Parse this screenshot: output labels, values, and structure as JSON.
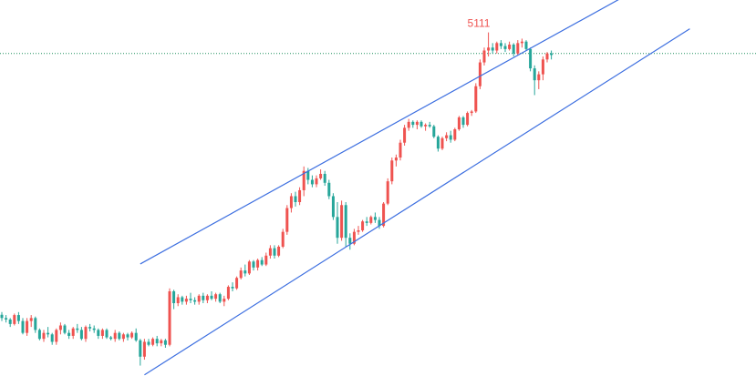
{
  "chart_data": {
    "type": "candlestick",
    "price_min": 3955,
    "price_max": 5220,
    "x": [
      0,
      133
    ],
    "colors": {
      "up": "#ef5350",
      "down": "#26a69a",
      "channel": "#3d6fe0",
      "price_line": "#1f8f5f",
      "high_label": "#ef5350",
      "background": "#ffffff"
    },
    "high_label": {
      "text": "5111",
      "value": 5111,
      "index": 115
    },
    "price_line": {
      "value": 5040,
      "style": "dotted"
    },
    "channel_lines": [
      {
        "name": "upper",
        "from": {
          "index": 33,
          "price": 4332
        },
        "to": {
          "index": 148,
          "price": 5229
        }
      },
      {
        "name": "lower",
        "from": {
          "index": 34,
          "price": 3959
        },
        "to": {
          "index": 164,
          "price": 5123
        }
      }
    ],
    "candles": [
      [
        4161,
        4170,
        4140,
        4150
      ],
      [
        4150,
        4160,
        4135,
        4145
      ],
      [
        4145,
        4150,
        4120,
        4130
      ],
      [
        4130,
        4165,
        4125,
        4160
      ],
      [
        4160,
        4170,
        4130,
        4140
      ],
      [
        4140,
        4150,
        4095,
        4100
      ],
      [
        4100,
        4150,
        4090,
        4140
      ],
      [
        4140,
        4160,
        4120,
        4150
      ],
      [
        4150,
        4155,
        4100,
        4110
      ],
      [
        4110,
        4115,
        4075,
        4080
      ],
      [
        4080,
        4110,
        4070,
        4100
      ],
      [
        4100,
        4120,
        4085,
        4095
      ],
      [
        4095,
        4100,
        4060,
        4070
      ],
      [
        4070,
        4115,
        4060,
        4110
      ],
      [
        4110,
        4135,
        4095,
        4125
      ],
      [
        4125,
        4130,
        4095,
        4100
      ],
      [
        4100,
        4110,
        4080,
        4090
      ],
      [
        4090,
        4120,
        4080,
        4115
      ],
      [
        4115,
        4130,
        4100,
        4110
      ],
      [
        4110,
        4120,
        4075,
        4080
      ],
      [
        4080,
        4125,
        4070,
        4120
      ],
      [
        4120,
        4130,
        4105,
        4115
      ],
      [
        4115,
        4125,
        4100,
        4110
      ],
      [
        4110,
        4115,
        4080,
        4090
      ],
      [
        4090,
        4115,
        4080,
        4110
      ],
      [
        4110,
        4115,
        4080,
        4085
      ],
      [
        4085,
        4090,
        4075,
        4080
      ],
      [
        4080,
        4110,
        4070,
        4100
      ],
      [
        4100,
        4105,
        4075,
        4080
      ],
      [
        4080,
        4100,
        4070,
        4095
      ],
      [
        4095,
        4100,
        4075,
        4085
      ],
      [
        4085,
        4105,
        4080,
        4100
      ],
      [
        4100,
        4115,
        4070,
        4075
      ],
      [
        4075,
        4080,
        3990,
        4020
      ],
      [
        4020,
        4080,
        4010,
        4070
      ],
      [
        4070,
        4080,
        4055,
        4060
      ],
      [
        4060,
        4085,
        4055,
        4080
      ],
      [
        4080,
        4090,
        4055,
        4065
      ],
      [
        4065,
        4080,
        4055,
        4075
      ],
      [
        4075,
        4080,
        4050,
        4060
      ],
      [
        4060,
        4250,
        4055,
        4240
      ],
      [
        4240,
        4245,
        4180,
        4200
      ],
      [
        4200,
        4230,
        4190,
        4220
      ],
      [
        4220,
        4225,
        4195,
        4205
      ],
      [
        4205,
        4225,
        4195,
        4215
      ],
      [
        4215,
        4235,
        4200,
        4210
      ],
      [
        4210,
        4220,
        4195,
        4205
      ],
      [
        4205,
        4230,
        4195,
        4225
      ],
      [
        4225,
        4235,
        4200,
        4210
      ],
      [
        4210,
        4230,
        4200,
        4225
      ],
      [
        4225,
        4240,
        4210,
        4215
      ],
      [
        4215,
        4235,
        4205,
        4230
      ],
      [
        4230,
        4235,
        4200,
        4205
      ],
      [
        4205,
        4225,
        4190,
        4215
      ],
      [
        4215,
        4260,
        4210,
        4255
      ],
      [
        4255,
        4270,
        4240,
        4250
      ],
      [
        4250,
        4290,
        4245,
        4285
      ],
      [
        4285,
        4320,
        4280,
        4310
      ],
      [
        4310,
        4330,
        4290,
        4300
      ],
      [
        4300,
        4345,
        4295,
        4340
      ],
      [
        4340,
        4345,
        4310,
        4320
      ],
      [
        4320,
        4350,
        4310,
        4345
      ],
      [
        4345,
        4355,
        4325,
        4330
      ],
      [
        4330,
        4370,
        4325,
        4360
      ],
      [
        4360,
        4395,
        4350,
        4385
      ],
      [
        4385,
        4395,
        4350,
        4360
      ],
      [
        4360,
        4395,
        4355,
        4390
      ],
      [
        4390,
        4450,
        4385,
        4440
      ],
      [
        4440,
        4530,
        4430,
        4520
      ],
      [
        4520,
        4570,
        4505,
        4560
      ],
      [
        4560,
        4575,
        4525,
        4540
      ],
      [
        4540,
        4590,
        4530,
        4580
      ],
      [
        4580,
        4660,
        4560,
        4645
      ],
      [
        4645,
        4655,
        4600,
        4615
      ],
      [
        4615,
        4630,
        4590,
        4600
      ],
      [
        4600,
        4630,
        4590,
        4620
      ],
      [
        4620,
        4650,
        4615,
        4635
      ],
      [
        4635,
        4645,
        4595,
        4605
      ],
      [
        4605,
        4615,
        4550,
        4560
      ],
      [
        4560,
        4570,
        4480,
        4490
      ],
      [
        4490,
        4540,
        4400,
        4420
      ],
      [
        4420,
        4545,
        4410,
        4530
      ],
      [
        4530,
        4540,
        4390,
        4420
      ],
      [
        4420,
        4435,
        4380,
        4400
      ],
      [
        4400,
        4450,
        4395,
        4440
      ],
      [
        4440,
        4460,
        4430,
        4445
      ],
      [
        4445,
        4480,
        4440,
        4475
      ],
      [
        4475,
        4490,
        4460,
        4470
      ],
      [
        4470,
        4495,
        4465,
        4490
      ],
      [
        4490,
        4505,
        4470,
        4480
      ],
      [
        4480,
        4490,
        4450,
        4460
      ],
      [
        4460,
        4540,
        4455,
        4535
      ],
      [
        4535,
        4620,
        4530,
        4610
      ],
      [
        4610,
        4690,
        4600,
        4680
      ],
      [
        4680,
        4700,
        4660,
        4690
      ],
      [
        4690,
        4750,
        4680,
        4740
      ],
      [
        4740,
        4800,
        4730,
        4790
      ],
      [
        4790,
        4820,
        4780,
        4810
      ],
      [
        4810,
        4815,
        4790,
        4800
      ],
      [
        4800,
        4815,
        4785,
        4810
      ],
      [
        4810,
        4815,
        4790,
        4795
      ],
      [
        4795,
        4805,
        4780,
        4800
      ],
      [
        4800,
        4810,
        4790,
        4795
      ],
      [
        4795,
        4800,
        4755,
        4760
      ],
      [
        4760,
        4765,
        4710,
        4720
      ],
      [
        4720,
        4760,
        4715,
        4755
      ],
      [
        4755,
        4775,
        4745,
        4765
      ],
      [
        4765,
        4780,
        4740,
        4750
      ],
      [
        4750,
        4790,
        4745,
        4785
      ],
      [
        4785,
        4830,
        4780,
        4825
      ],
      [
        4825,
        4830,
        4790,
        4800
      ],
      [
        4800,
        4845,
        4795,
        4840
      ],
      [
        4840,
        4850,
        4830,
        4845
      ],
      [
        4845,
        4940,
        4840,
        4930
      ],
      [
        4930,
        5020,
        4920,
        5010
      ],
      [
        5010,
        5060,
        5000,
        5050
      ],
      [
        5050,
        5111,
        5030,
        5060
      ],
      [
        5060,
        5075,
        5040,
        5050
      ],
      [
        5050,
        5080,
        5040,
        5075
      ],
      [
        5075,
        5085,
        5055,
        5065
      ],
      [
        5065,
        5075,
        5045,
        5055
      ],
      [
        5055,
        5080,
        5050,
        5070
      ],
      [
        5070,
        5075,
        5030,
        5040
      ],
      [
        5040,
        5085,
        5035,
        5075
      ],
      [
        5075,
        5090,
        5060,
        5080
      ],
      [
        5080,
        5085,
        5050,
        5055
      ],
      [
        5055,
        5060,
        4980,
        4990
      ],
      [
        4990,
        5000,
        4900,
        4950
      ],
      [
        4950,
        4980,
        4920,
        4970
      ],
      [
        4970,
        5030,
        4950,
        5020
      ],
      [
        5020,
        5045,
        5010,
        5040
      ],
      [
        5040,
        5050,
        5020,
        5035
      ]
    ]
  }
}
